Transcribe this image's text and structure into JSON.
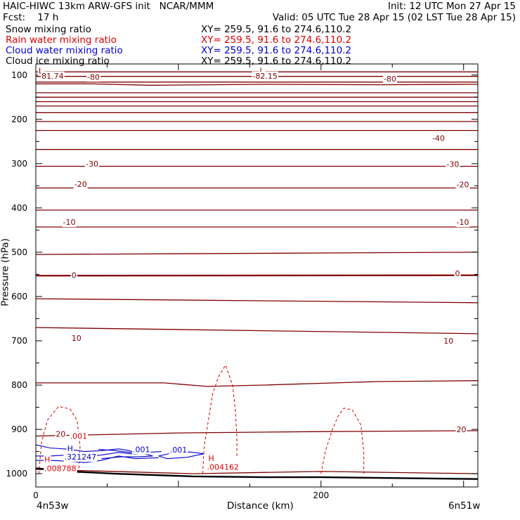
{
  "header": {
    "title": "HAIC-HIWC 13km ARW-GFS init   NCAR/MMM",
    "init": "Init: 12 UTC Mon 27 Apr 15",
    "fcst": "Fcst:    17 h",
    "valid": "Valid: 05 UTC Tue 28 Apr 15 (02 LST Tue 28 Apr 15)"
  },
  "legend": [
    {
      "label": "Snow mixing ratio",
      "xy": "XY= 259.5, 91.6 to 274.6,110.2",
      "color": "#000000"
    },
    {
      "label": "Rain water mixing ratio",
      "xy": "XY= 259.5, 91.6 to 274.6,110.2",
      "color": "#e00000"
    },
    {
      "label": "Cloud water mixing ratio",
      "xy": "XY= 259.5, 91.6 to 274.6,110.2",
      "color": "#0000cc"
    },
    {
      "label": "Cloud ice mixing ratio",
      "xy": "XY= 259.5, 91.6 to 274.6,110.2",
      "color": "#000000"
    }
  ],
  "chart_data": {
    "type": "line",
    "xlabel": "Distance (km)",
    "ylabel": "Pressure (hPa)",
    "xlim": [
      0,
      310
    ],
    "ylim": [
      1030,
      75
    ],
    "x_ticks": [
      0,
      200
    ],
    "y_ticks": [
      100,
      200,
      300,
      400,
      500,
      600,
      700,
      800,
      900,
      1000
    ],
    "x_endpoint_labels": {
      "left": "4n53w",
      "right": "6n51w"
    },
    "colors": {
      "temperature": "#800000",
      "rain": "#e00000",
      "cloud_water": "#0000cc",
      "ground": "#000000"
    },
    "temperature_isotherms": [
      {
        "label": "-80",
        "points": [
          [
            0,
            93
          ],
          [
            310,
            93
          ]
        ]
      },
      {
        "label": "-80",
        "points": [
          [
            0,
            103
          ],
          [
            310,
            103
          ]
        ]
      },
      {
        "label": "-80",
        "points": [
          [
            0,
            116
          ],
          [
            310,
            116
          ]
        ]
      },
      {
        "label": "-80",
        "points": [
          [
            0,
            120
          ],
          [
            40,
            120
          ],
          [
            80,
            123
          ],
          [
            160,
            121
          ],
          [
            240,
            122
          ],
          [
            310,
            121
          ]
        ]
      },
      {
        "label": "",
        "points": [
          [
            0,
            140
          ],
          [
            310,
            140
          ]
        ]
      },
      {
        "label": "",
        "points": [
          [
            0,
            150
          ],
          [
            310,
            150
          ]
        ]
      },
      {
        "label": "",
        "points": [
          [
            0,
            160
          ],
          [
            310,
            160
          ]
        ]
      },
      {
        "label": "",
        "points": [
          [
            0,
            170
          ],
          [
            310,
            170
          ]
        ]
      },
      {
        "label": "",
        "points": [
          [
            0,
            185
          ],
          [
            310,
            185
          ]
        ]
      },
      {
        "label": "",
        "points": [
          [
            0,
            205
          ],
          [
            310,
            205
          ]
        ]
      },
      {
        "label": "-40",
        "points": [
          [
            0,
            225
          ],
          [
            310,
            225
          ]
        ]
      },
      {
        "label": "-30",
        "points": [
          [
            0,
            268
          ],
          [
            310,
            268
          ]
        ]
      },
      {
        "label": "-20",
        "points": [
          [
            0,
            306
          ],
          [
            310,
            306
          ]
        ]
      },
      {
        "label": "-10",
        "points": [
          [
            0,
            355
          ],
          [
            310,
            355
          ]
        ]
      },
      {
        "label": "",
        "points": [
          [
            0,
            405
          ],
          [
            310,
            405
          ]
        ]
      },
      {
        "label": "-10",
        "points": [
          [
            0,
            443
          ],
          [
            310,
            443
          ]
        ]
      },
      {
        "label": "",
        "points": [
          [
            0,
            505
          ],
          [
            310,
            500
          ]
        ]
      },
      {
        "label": "0",
        "points": [
          [
            0,
            553
          ],
          [
            310,
            552
          ]
        ]
      },
      {
        "label": "",
        "points": [
          [
            0,
            605
          ],
          [
            310,
            614
          ]
        ]
      },
      {
        "label": "10",
        "points": [
          [
            0,
            670
          ],
          [
            310,
            684
          ]
        ]
      },
      {
        "label": "",
        "points": [
          [
            0,
            795
          ],
          [
            90,
            795
          ],
          [
            120,
            803
          ],
          [
            160,
            800
          ],
          [
            240,
            792
          ],
          [
            310,
            790
          ]
        ]
      },
      {
        "label": "20",
        "points": [
          [
            0,
            915
          ],
          [
            100,
            908
          ],
          [
            200,
            905
          ],
          [
            310,
            903
          ]
        ]
      },
      {
        "label": "",
        "points": [
          [
            0,
            990
          ],
          [
            110,
            1000
          ],
          [
            200,
            995
          ],
          [
            310,
            1000
          ]
        ]
      }
    ],
    "isotherm_labels": [
      {
        "text": "-80",
        "x": 36,
        "p": 104
      },
      {
        "text": "-80",
        "x": 244,
        "p": 108
      },
      {
        "text": "-30",
        "x": 35,
        "p": 300
      },
      {
        "text": "-30",
        "x": 288,
        "p": 301
      },
      {
        "text": "-20",
        "x": 27,
        "p": 346
      },
      {
        "text": "-20",
        "x": 295,
        "p": 347
      },
      {
        "text": "-40",
        "x": 278,
        "p": 242
      },
      {
        "text": "-10",
        "x": 19,
        "p": 432
      },
      {
        "text": "-10",
        "x": 295,
        "p": 432
      },
      {
        "text": "0",
        "x": 25,
        "p": 552
      },
      {
        "text": "0",
        "x": 294,
        "p": 548
      },
      {
        "text": "10",
        "x": 25,
        "p": 694
      },
      {
        "text": "10",
        "x": 286,
        "p": 700
      },
      {
        "text": "20",
        "x": 14,
        "p": 910
      },
      {
        "text": "20",
        "x": 295,
        "p": 900
      }
    ],
    "low_labels": [
      {
        "text": "L",
        "x": 2,
        "p": 90
      },
      {
        "text": "L",
        "x": 157,
        "p": 90
      }
    ],
    "extrema_values": [
      {
        "text": "81.74",
        "x": 4,
        "p": 102
      },
      {
        "text": "-82.15",
        "x": 152,
        "p": 102
      }
    ],
    "rain_contours": [
      {
        "points": [
          [
            2,
            1000
          ],
          [
            4,
            930
          ],
          [
            8,
            880
          ],
          [
            16,
            848
          ],
          [
            24,
            854
          ],
          [
            29,
            880
          ],
          [
            31,
            940
          ],
          [
            30,
            1000
          ]
        ]
      },
      {
        "points": [
          [
            117,
            1000
          ],
          [
            118,
            940
          ],
          [
            121,
            880
          ],
          [
            124,
            820
          ],
          [
            128,
            782
          ],
          [
            133,
            755
          ],
          [
            138,
            800
          ],
          [
            140,
            860
          ],
          [
            141,
            920
          ],
          [
            141,
            960
          ]
        ]
      },
      {
        "points": [
          [
            200,
            1000
          ],
          [
            203,
            950
          ],
          [
            208,
            900
          ],
          [
            212,
            870
          ],
          [
            216,
            852
          ],
          [
            222,
            856
          ],
          [
            228,
            890
          ],
          [
            230,
            950
          ],
          [
            230,
            1000
          ]
        ]
      }
    ],
    "rain_labels": [
      {
        "text": ".001",
        "x": 24,
        "p": 915
      },
      {
        "text": "H",
        "x": 6,
        "p": 967
      },
      {
        "text": ".008788",
        "x": 6,
        "p": 988
      },
      {
        "text": "H",
        "x": 121,
        "p": 965
      },
      {
        "text": ".004162",
        "x": 120,
        "p": 985
      }
    ],
    "cloud_water_contours": [
      {
        "points": [
          [
            0,
            935
          ],
          [
            10,
            942
          ],
          [
            24,
            945
          ],
          [
            34,
            950
          ],
          [
            46,
            948
          ],
          [
            58,
            944
          ],
          [
            64,
            947
          ],
          [
            70,
            952
          ]
        ]
      },
      {
        "points": [
          [
            0,
            960
          ],
          [
            10,
            960
          ],
          [
            22,
            958
          ],
          [
            34,
            962
          ],
          [
            46,
            958
          ],
          [
            58,
            952
          ],
          [
            70,
            956
          ],
          [
            78,
            952
          ],
          [
            88,
            950
          ]
        ]
      },
      {
        "points": [
          [
            0,
            970
          ],
          [
            10,
            970
          ],
          [
            24,
            972
          ],
          [
            34,
            975
          ],
          [
            46,
            970
          ],
          [
            58,
            960
          ],
          [
            70,
            966
          ],
          [
            86,
            964
          ]
        ]
      },
      {
        "points": [
          [
            44,
            945
          ],
          [
            56,
            948
          ],
          [
            66,
            952
          ],
          [
            76,
            955
          ],
          [
            82,
            960
          ],
          [
            72,
            962
          ],
          [
            60,
            962
          ],
          [
            46,
            966
          ]
        ]
      },
      {
        "points": [
          [
            86,
            960
          ],
          [
            96,
            953
          ],
          [
            108,
            951
          ],
          [
            118,
            955
          ],
          [
            106,
            963
          ],
          [
            92,
            966
          ],
          [
            86,
            960
          ]
        ]
      }
    ],
    "cloud_water_labels": [
      {
        "text": "H",
        "x": 22,
        "p": 943
      },
      {
        "text": ".321247",
        "x": 20,
        "p": 962
      },
      {
        "text": ".001",
        "x": 68,
        "p": 945
      },
      {
        "text": ".001",
        "x": 94,
        "p": 946
      }
    ],
    "ground": {
      "points": [
        [
          0,
          988
        ],
        [
          25,
          995
        ],
        [
          55,
          1000
        ],
        [
          110,
          1006
        ],
        [
          160,
          1008
        ],
        [
          200,
          1008
        ],
        [
          310,
          1012
        ]
      ]
    }
  }
}
